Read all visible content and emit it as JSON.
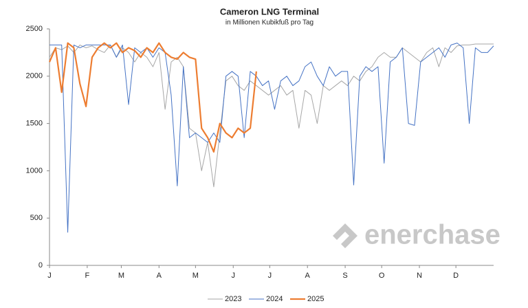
{
  "chart_data": {
    "type": "line",
    "title": "Cameron LNG Terminal",
    "subtitle": "in Millionen Kubikfuß pro Tag",
    "watermark": "enerchase",
    "xlim": [
      0,
      365
    ],
    "ylim": [
      0,
      2500
    ],
    "yticks": [
      0,
      500,
      1000,
      1500,
      2000,
      2500
    ],
    "xticks": [
      {
        "value": 0,
        "label": "J"
      },
      {
        "value": 31,
        "label": "F"
      },
      {
        "value": 59,
        "label": "M"
      },
      {
        "value": 90,
        "label": "A"
      },
      {
        "value": 120,
        "label": "M"
      },
      {
        "value": 151,
        "label": "J"
      },
      {
        "value": 181,
        "label": "J"
      },
      {
        "value": 212,
        "label": "A"
      },
      {
        "value": 243,
        "label": "S"
      },
      {
        "value": 273,
        "label": "O"
      },
      {
        "value": 304,
        "label": "N"
      },
      {
        "value": 334,
        "label": "D"
      }
    ],
    "series": [
      {
        "name": "2023",
        "color": "#a6a6a6",
        "width": 1,
        "x": [
          0,
          5,
          10,
          15,
          20,
          25,
          30,
          35,
          40,
          45,
          50,
          55,
          60,
          65,
          70,
          75,
          80,
          85,
          90,
          95,
          100,
          105,
          110,
          115,
          120,
          125,
          130,
          135,
          140,
          145,
          150,
          155,
          160,
          165,
          170,
          175,
          180,
          185,
          190,
          195,
          200,
          205,
          210,
          215,
          220,
          225,
          230,
          235,
          240,
          245,
          250,
          255,
          260,
          265,
          270,
          275,
          280,
          285,
          290,
          295,
          300,
          305,
          310,
          315,
          320,
          325,
          330,
          335,
          340,
          345,
          350,
          355,
          360,
          365
        ],
        "values": [
          2200,
          2300,
          2280,
          2320,
          2250,
          2330,
          2300,
          2320,
          2280,
          2250,
          2330,
          2200,
          2300,
          2250,
          2150,
          2250,
          2200,
          2100,
          2250,
          1650,
          2150,
          2200,
          2100,
          1450,
          1400,
          1000,
          1300,
          830,
          1400,
          1950,
          2000,
          1900,
          1850,
          1950,
          1900,
          1850,
          1800,
          1850,
          1900,
          1800,
          1850,
          1450,
          1850,
          1800,
          1500,
          1900,
          1850,
          1900,
          1950,
          1900,
          2000,
          1950,
          2050,
          2100,
          2200,
          2250,
          2200,
          2200,
          2300,
          2250,
          2200,
          2150,
          2250,
          2300,
          2100,
          2300,
          2250,
          2320,
          2330,
          2330,
          2340,
          2340,
          2340,
          2340
        ]
      },
      {
        "name": "2024",
        "color": "#4472c4",
        "width": 1,
        "x": [
          0,
          5,
          10,
          15,
          20,
          25,
          30,
          35,
          40,
          45,
          50,
          55,
          60,
          65,
          70,
          75,
          80,
          85,
          90,
          95,
          100,
          105,
          110,
          115,
          120,
          125,
          130,
          135,
          140,
          145,
          150,
          155,
          160,
          165,
          170,
          175,
          180,
          185,
          190,
          195,
          200,
          205,
          210,
          215,
          220,
          225,
          230,
          235,
          240,
          245,
          250,
          255,
          260,
          265,
          270,
          275,
          280,
          285,
          290,
          295,
          300,
          305,
          310,
          315,
          320,
          325,
          330,
          335,
          340,
          345,
          350,
          355,
          360,
          365
        ],
        "values": [
          2330,
          2330,
          2330,
          350,
          2330,
          2300,
          2330,
          2330,
          2330,
          2330,
          2330,
          2200,
          2330,
          1700,
          2300,
          2250,
          2300,
          2200,
          2300,
          2250,
          1800,
          840,
          2100,
          1350,
          1400,
          1350,
          1300,
          1400,
          1300,
          2000,
          2050,
          2000,
          1350,
          2050,
          2000,
          1900,
          1950,
          1650,
          1950,
          2000,
          1900,
          1950,
          2100,
          2150,
          2000,
          1900,
          2100,
          2000,
          2050,
          2050,
          850,
          2000,
          2100,
          2050,
          2100,
          1080,
          2150,
          2200,
          2300,
          1500,
          1480,
          2150,
          2200,
          2250,
          2300,
          2200,
          2330,
          2350,
          2300,
          1500,
          2300,
          2250,
          2250,
          2320
        ]
      },
      {
        "name": "2025",
        "color": "#ed7d31",
        "width": 2.2,
        "x": [
          0,
          5,
          10,
          15,
          20,
          25,
          30,
          35,
          40,
          45,
          50,
          55,
          60,
          65,
          70,
          75,
          80,
          85,
          90,
          95,
          100,
          105,
          110,
          115,
          120,
          125,
          130,
          135,
          140,
          145,
          150,
          155,
          160,
          165,
          170
        ],
        "values": [
          2150,
          2300,
          1830,
          2350,
          2300,
          1920,
          1680,
          2200,
          2300,
          2350,
          2300,
          2350,
          2250,
          2300,
          2270,
          2200,
          2300,
          2250,
          2350,
          2250,
          2200,
          2180,
          2250,
          2200,
          2180,
          1450,
          1350,
          1200,
          1500,
          1400,
          1350,
          1450,
          1400,
          1450,
          2050
        ]
      }
    ]
  }
}
